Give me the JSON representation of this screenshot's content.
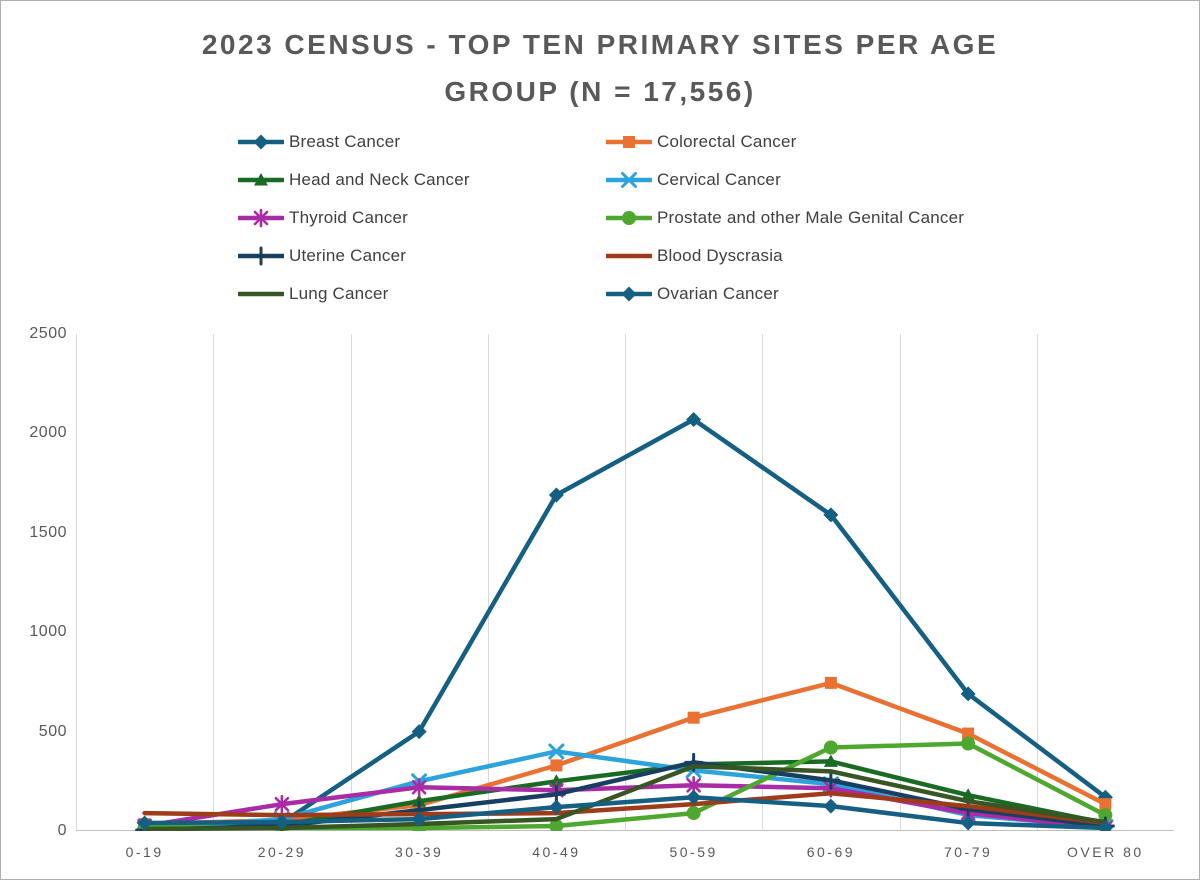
{
  "title": {
    "text": "2023 CENSUS - TOP TEN PRIMARY SITES PER AGE GROUP (N = 17,556)"
  },
  "axis_colors": {
    "gridline": "#D9D9D9",
    "axis_line": "#BFBFBF"
  },
  "text_colors": {
    "title": "#595959",
    "ticks": "#595959",
    "legend": "#404040"
  },
  "chart_data": {
    "type": "line",
    "title": "2023 CENSUS - TOP TEN PRIMARY SITES PER AGE GROUP (N = 17,556)",
    "categories": [
      "0-19",
      "20-29",
      "30-39",
      "40-49",
      "50-59",
      "60-69",
      "70-79",
      "OVER 80"
    ],
    "xlabel": "",
    "ylabel": "",
    "ylim": [
      0,
      2500
    ],
    "yticks": [
      0,
      500,
      1000,
      1500,
      2000,
      2500
    ],
    "grid": "vertical-only",
    "legend_position": "top-two-columns",
    "series": [
      {
        "name": "Breast Cancer",
        "color": "#156082",
        "marker": "diamond",
        "values": [
          15,
          40,
          500,
          1690,
          2070,
          1590,
          690,
          170
        ]
      },
      {
        "name": "Colorectal Cancer",
        "color": "#E97132",
        "marker": "square",
        "values": [
          35,
          55,
          130,
          330,
          570,
          745,
          490,
          135
        ]
      },
      {
        "name": "Head and Neck Cancer",
        "color": "#196B24",
        "marker": "triangle",
        "values": [
          25,
          30,
          150,
          250,
          335,
          350,
          180,
          40
        ]
      },
      {
        "name": "Cervical Cancer",
        "color": "#2BA3DC",
        "marker": "x",
        "values": [
          10,
          60,
          250,
          400,
          305,
          235,
          80,
          20
        ]
      },
      {
        "name": "Thyroid Cancer",
        "color": "#A92CA6",
        "marker": "asterisk",
        "values": [
          25,
          135,
          220,
          205,
          230,
          215,
          90,
          15
        ]
      },
      {
        "name": "Prostate and other Male Genital Cancer",
        "color": "#4EA72E",
        "marker": "circle",
        "values": [
          20,
          15,
          15,
          25,
          90,
          420,
          440,
          80
        ]
      },
      {
        "name": "Uterine Cancer",
        "color": "#173F5F",
        "marker": "plus",
        "values": [
          5,
          25,
          105,
          185,
          345,
          255,
          110,
          25
        ]
      },
      {
        "name": "Blood Dyscrasia",
        "color": "#9E3B18",
        "marker": "none",
        "values": [
          90,
          80,
          85,
          90,
          135,
          190,
          125,
          40
        ]
      },
      {
        "name": "Lung Cancer",
        "color": "#375623",
        "marker": "none",
        "values": [
          10,
          15,
          35,
          60,
          325,
          300,
          150,
          45
        ]
      },
      {
        "name": "Ovarian Cancer",
        "color": "#156082",
        "marker": "diamond",
        "values": [
          40,
          45,
          60,
          120,
          170,
          125,
          40,
          15
        ]
      }
    ]
  }
}
